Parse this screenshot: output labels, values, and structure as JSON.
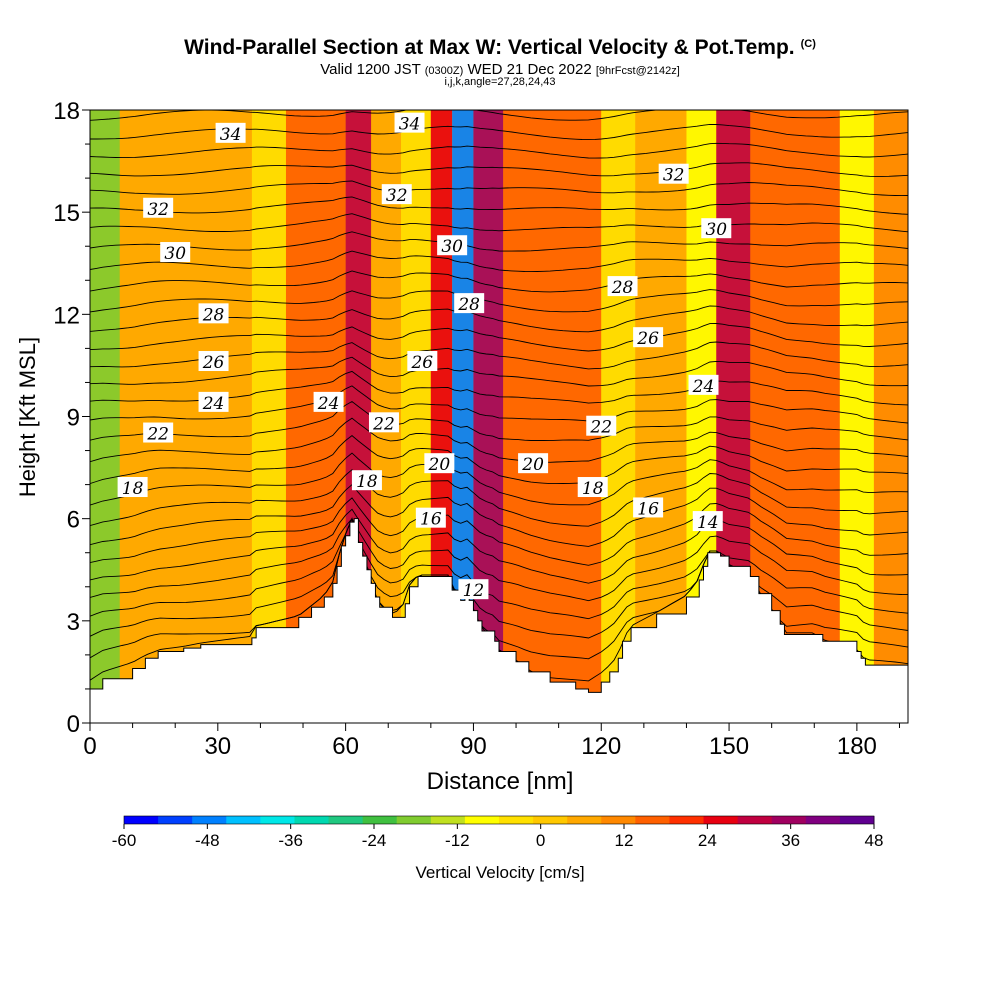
{
  "title": "Wind-Parallel Section at Max W: Vertical Velocity & Pot.Temp.",
  "copyright": "(C)",
  "subtitle_main": "Valid 1200 JST",
  "subtitle_utc": "(0300Z)",
  "subtitle_date": "WED 21 Dec 2022",
  "subtitle_fcst": "[9hrFcst@2142z]",
  "index_line": "i,j,k,angle=27,28,24,43",
  "chart_data": {
    "type": "heatmap",
    "title": "Wind-Parallel Section at Max W: Vertical Velocity & Pot.Temp.",
    "xlabel": "Distance [nm]",
    "ylabel": "Height [Kft MSL]",
    "xlim": [
      0,
      192
    ],
    "ylim": [
      0,
      18
    ],
    "x_ticks": [
      0,
      30,
      60,
      90,
      120,
      150,
      180
    ],
    "y_ticks": [
      0,
      3,
      6,
      9,
      12,
      15,
      18
    ],
    "colorbar": {
      "label": "Vertical Velocity [cm/s]",
      "ticks": [
        -60,
        -48,
        -36,
        -24,
        -12,
        0,
        12,
        24,
        36,
        48
      ],
      "range": [
        -60,
        48
      ]
    },
    "colorbar_colors": [
      "#0000ff",
      "#0040ff",
      "#0080ff",
      "#00c0ff",
      "#00e8e8",
      "#00d8b0",
      "#20c880",
      "#40c040",
      "#80cc30",
      "#c0e020",
      "#ffff00",
      "#ffe000",
      "#ffc800",
      "#ffa800",
      "#ff8800",
      "#ff6000",
      "#ff3000",
      "#e80010",
      "#c00040",
      "#a00060",
      "#800080",
      "#600090"
    ],
    "velocity_bands": [
      {
        "x_range": [
          0,
          7
        ],
        "w": -16
      },
      {
        "x_range": [
          7,
          38
        ],
        "w": 6
      },
      {
        "x_range": [
          38,
          46
        ],
        "w": -6
      },
      {
        "x_range": [
          46,
          60
        ],
        "w": 14
      },
      {
        "x_range": [
          60,
          66
        ],
        "w": 30
      },
      {
        "x_range": [
          66,
          73
        ],
        "w": 4
      },
      {
        "x_range": [
          73,
          80
        ],
        "w": -6
      },
      {
        "x_range": [
          80,
          85
        ],
        "w": 28
      },
      {
        "x_range": [
          85,
          90
        ],
        "w": -48
      },
      {
        "x_range": [
          90,
          97
        ],
        "w": 36
      },
      {
        "x_range": [
          97,
          120
        ],
        "w": 14
      },
      {
        "x_range": [
          120,
          128
        ],
        "w": -4
      },
      {
        "x_range": [
          128,
          140
        ],
        "w": 8
      },
      {
        "x_range": [
          140,
          147
        ],
        "w": -10
      },
      {
        "x_range": [
          147,
          155
        ],
        "w": 30
      },
      {
        "x_range": [
          155,
          176
        ],
        "w": 16
      },
      {
        "x_range": [
          176,
          184
        ],
        "w": -10
      },
      {
        "x_range": [
          184,
          192
        ],
        "w": 10
      }
    ],
    "terrain": {
      "x": [
        0,
        3,
        10,
        13,
        16,
        22,
        26,
        38,
        39,
        49,
        52,
        55,
        57,
        58,
        59,
        60,
        61,
        62,
        63,
        64,
        65,
        66,
        67,
        68,
        71,
        74,
        75,
        77,
        84,
        85,
        87,
        88,
        89,
        90,
        91,
        92,
        95,
        96,
        100,
        103,
        108,
        114,
        117,
        120,
        122,
        124,
        125,
        127,
        133,
        140,
        143,
        144,
        145,
        147,
        148,
        150,
        155,
        157,
        160,
        162,
        163,
        167,
        170,
        172,
        180,
        181,
        182,
        192
      ],
      "height": [
        1.0,
        1.3,
        1.6,
        1.9,
        2.1,
        2.2,
        2.3,
        2.5,
        2.8,
        3.1,
        3.4,
        3.7,
        4.1,
        4.6,
        5.2,
        5.5,
        5.9,
        6.0,
        5.3,
        4.9,
        4.5,
        4.1,
        3.7,
        3.4,
        3.1,
        3.5,
        4.0,
        4.3,
        4.3,
        3.9,
        3.6,
        3.9,
        3.6,
        3.3,
        3.0,
        2.7,
        2.4,
        2.1,
        1.8,
        1.5,
        1.2,
        1.0,
        0.9,
        1.2,
        1.5,
        1.9,
        2.4,
        2.8,
        3.2,
        3.7,
        4.2,
        4.6,
        5.0,
        5.0,
        4.9,
        4.6,
        4.3,
        3.8,
        3.3,
        2.9,
        2.6,
        2.6,
        2.6,
        2.4,
        2.1,
        1.9,
        1.7,
        1.6
      ]
    },
    "theta_contours": [
      {
        "value": 12,
        "label_x": 90,
        "label_y": 3.9
      },
      {
        "value": 14,
        "label_x": 145,
        "label_y": 5.9
      },
      {
        "value": 16,
        "label_x": 80,
        "label_y": 6.0
      },
      {
        "value": 16,
        "label_x": 131,
        "label_y": 6.3
      },
      {
        "value": 18,
        "label_x": 10,
        "label_y": 6.9
      },
      {
        "value": 18,
        "label_x": 65,
        "label_y": 7.1
      },
      {
        "value": 18,
        "label_x": 118,
        "label_y": 6.9
      },
      {
        "value": 20,
        "label_x": 82,
        "label_y": 7.6
      },
      {
        "value": 20,
        "label_x": 104,
        "label_y": 7.6
      },
      {
        "value": 22,
        "label_x": 16,
        "label_y": 8.5
      },
      {
        "value": 22,
        "label_x": 69,
        "label_y": 8.8
      },
      {
        "value": 22,
        "label_x": 120,
        "label_y": 8.7
      },
      {
        "value": 24,
        "label_x": 29,
        "label_y": 9.4
      },
      {
        "value": 24,
        "label_x": 56,
        "label_y": 9.4
      },
      {
        "value": 24,
        "label_x": 144,
        "label_y": 9.9
      },
      {
        "value": 26,
        "label_x": 29,
        "label_y": 10.6
      },
      {
        "value": 26,
        "label_x": 78,
        "label_y": 10.6
      },
      {
        "value": 26,
        "label_x": 131,
        "label_y": 11.3
      },
      {
        "value": 28,
        "label_x": 29,
        "label_y": 12.0
      },
      {
        "value": 28,
        "label_x": 89,
        "label_y": 12.3
      },
      {
        "value": 28,
        "label_x": 125,
        "label_y": 12.8
      },
      {
        "value": 30,
        "label_x": 20,
        "label_y": 13.8
      },
      {
        "value": 30,
        "label_x": 85,
        "label_y": 14.0
      },
      {
        "value": 30,
        "label_x": 147,
        "label_y": 14.5
      },
      {
        "value": 32,
        "label_x": 16,
        "label_y": 15.1
      },
      {
        "value": 32,
        "label_x": 72,
        "label_y": 15.5
      },
      {
        "value": 32,
        "label_x": 137,
        "label_y": 16.1
      },
      {
        "value": 34,
        "label_x": 33,
        "label_y": 17.3
      },
      {
        "value": 34,
        "label_x": 75,
        "label_y": 17.6
      }
    ]
  }
}
